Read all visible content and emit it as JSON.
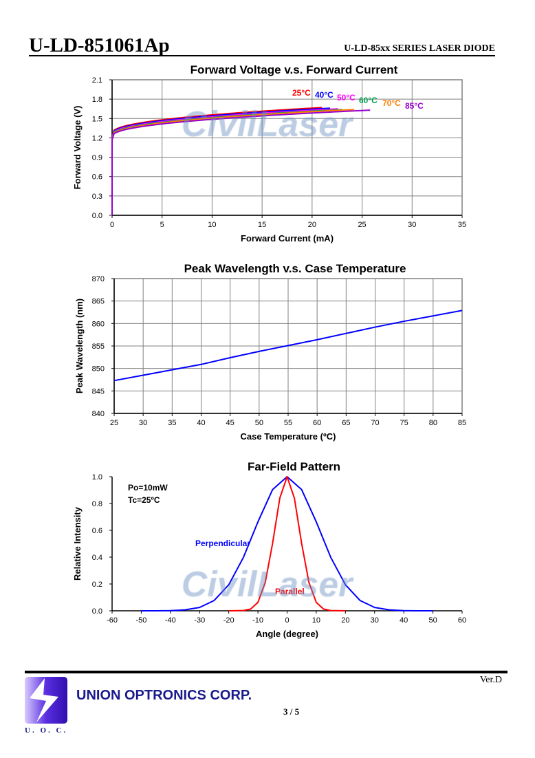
{
  "header": {
    "title": "U-LD-851061Ap",
    "subtitle": "U-LD-85xx SERIES LASER DIODE"
  },
  "watermark": "CivilLaser",
  "chart_data": [
    {
      "type": "line",
      "title": "Forward Voltage v.s. Forward Current",
      "xlabel": "Forward Current (mA)",
      "ylabel": "Forward Voltage (V)",
      "xlim": [
        0,
        35
      ],
      "ylim": [
        0,
        2.1
      ],
      "xticks": [
        0,
        5,
        10,
        15,
        20,
        25,
        30,
        35
      ],
      "yticks": [
        "0.0",
        "0.3",
        "0.6",
        "0.9",
        "1.2",
        "1.5",
        "1.8",
        "2.1"
      ],
      "grid": true,
      "series": [
        {
          "name": "25°C",
          "color": "#ff0000",
          "end_current": 21,
          "threshold_v": 1.27,
          "end_v": 1.67
        },
        {
          "name": "40°C",
          "color": "#0000ff",
          "end_current": 21.8,
          "threshold_v": 1.26,
          "end_v": 1.66
        },
        {
          "name": "50°C",
          "color": "#ff00ff",
          "end_current": 22.6,
          "threshold_v": 1.25,
          "end_v": 1.65
        },
        {
          "name": "60°C",
          "color": "#00a050",
          "end_current": 23.2,
          "threshold_v": 1.24,
          "end_v": 1.64
        },
        {
          "name": "70°C",
          "color": "#ff8000",
          "end_current": 24.2,
          "threshold_v": 1.23,
          "end_v": 1.64
        },
        {
          "name": "85°C",
          "color": "#9900cc",
          "end_current": 25.9,
          "threshold_v": 1.22,
          "end_v": 1.63
        }
      ]
    },
    {
      "type": "line",
      "title": "Peak Wavelength v.s. Case Temperature",
      "xlabel": "Case Temperature (ºC)",
      "ylabel": "Peak Wavelength (nm)",
      "xlim": [
        25,
        85
      ],
      "ylim": [
        840,
        870
      ],
      "xticks": [
        25,
        30,
        35,
        40,
        45,
        50,
        55,
        60,
        65,
        70,
        75,
        80,
        85
      ],
      "yticks": [
        840,
        845,
        850,
        855,
        860,
        865,
        870
      ],
      "grid": true,
      "series": [
        {
          "name": "Peak wavelength",
          "color": "#0000ff",
          "x": [
            25,
            30,
            35,
            40,
            45,
            50,
            55,
            60,
            65,
            70,
            75,
            80,
            85
          ],
          "y": [
            847.3,
            848.5,
            849.7,
            850.9,
            852.4,
            853.8,
            855.1,
            856.4,
            857.8,
            859.2,
            860.5,
            861.7,
            862.9
          ]
        }
      ]
    },
    {
      "type": "line",
      "title": "Far-Field Pattern",
      "xlabel": "Angle (degree)",
      "ylabel": "Relative Intensity",
      "xlim": [
        -60,
        60
      ],
      "ylim": [
        0,
        1
      ],
      "xticks": [
        -60,
        -50,
        -40,
        -30,
        -20,
        -10,
        0,
        10,
        20,
        30,
        40,
        50,
        60
      ],
      "yticks": [
        "0.0",
        "0.2",
        "0.4",
        "0.6",
        "0.8",
        "1.0"
      ],
      "grid": false,
      "annotations": [
        "Po=10mW",
        "Tc=25ºC"
      ],
      "series": [
        {
          "name": "Perpendicular",
          "color": "#0000ff",
          "x": [
            -50,
            -45,
            -40,
            -35,
            -30,
            -25,
            -20,
            -15,
            -10,
            -5,
            0,
            5,
            10,
            15,
            20,
            25,
            30,
            35,
            40,
            45,
            50
          ],
          "y": [
            0,
            0,
            0.001,
            0.007,
            0.025,
            0.077,
            0.194,
            0.397,
            0.663,
            0.903,
            1,
            0.903,
            0.663,
            0.397,
            0.194,
            0.077,
            0.025,
            0.007,
            0.001,
            0,
            0
          ]
        },
        {
          "name": "Parallel",
          "color": "#ff0000",
          "x": [
            -20,
            -15,
            -12.5,
            -10,
            -7.5,
            -5,
            -2.5,
            0,
            2.5,
            5,
            7.5,
            10,
            12.5,
            15,
            20
          ],
          "y": [
            0,
            0.002,
            0.013,
            0.063,
            0.21,
            0.5,
            0.84,
            1,
            0.84,
            0.5,
            0.21,
            0.063,
            0.013,
            0.002,
            0
          ]
        }
      ]
    }
  ],
  "footer": {
    "version": "Ver.D",
    "company": "UNION OPTRONICS CORP.",
    "page": "3 / 5",
    "logo_text": "U. O. C."
  }
}
